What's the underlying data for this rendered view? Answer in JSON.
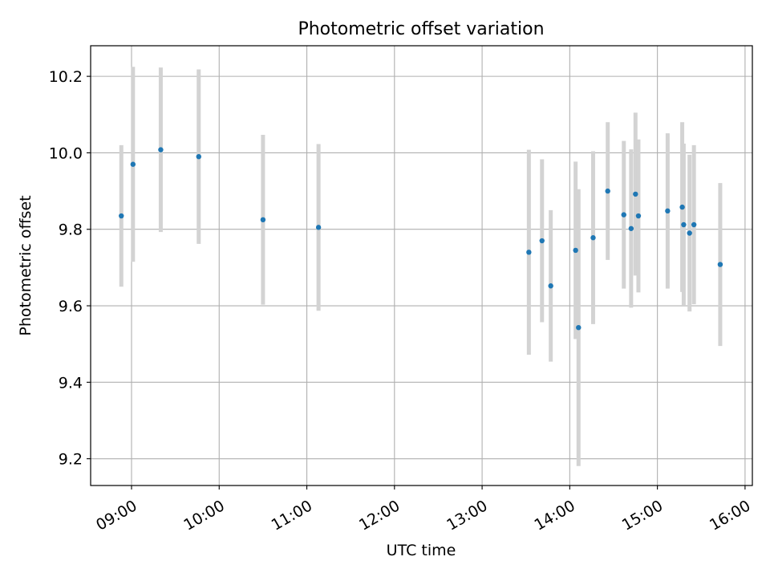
{
  "chart_data": {
    "type": "scatter",
    "title": "Photometric offset variation",
    "xlabel": "UTC time",
    "ylabel": "Photometric offset",
    "x_ticks": [
      "09:00",
      "10:00",
      "11:00",
      "12:00",
      "13:00",
      "14:00",
      "15:00",
      "16:00"
    ],
    "y_ticks": [
      "9.2",
      "9.4",
      "9.6",
      "9.8",
      "10.0",
      "10.2"
    ],
    "xlim": [
      "08:32",
      "16:05"
    ],
    "ylim": [
      9.13,
      10.28
    ],
    "grid": true,
    "marker_color": "#1f77b4",
    "errorbar_color": "#d3d3d3",
    "points": [
      {
        "x": "08:53",
        "y": 9.835,
        "err": 0.185
      },
      {
        "x": "09:01",
        "y": 9.97,
        "err": 0.255
      },
      {
        "x": "09:20",
        "y": 10.008,
        "err": 0.215
      },
      {
        "x": "09:46",
        "y": 9.99,
        "err": 0.228
      },
      {
        "x": "10:30",
        "y": 9.825,
        "err": 0.222
      },
      {
        "x": "11:08",
        "y": 9.805,
        "err": 0.218
      },
      {
        "x": "13:32",
        "y": 9.74,
        "err": 0.268
      },
      {
        "x": "13:41",
        "y": 9.77,
        "err": 0.213
      },
      {
        "x": "13:47",
        "y": 9.652,
        "err": 0.198
      },
      {
        "x": "14:04",
        "y": 9.745,
        "err": 0.232
      },
      {
        "x": "14:06",
        "y": 9.543,
        "err": 0.362
      },
      {
        "x": "14:16",
        "y": 9.778,
        "err": 0.226
      },
      {
        "x": "14:26",
        "y": 9.9,
        "err": 0.18
      },
      {
        "x": "14:37",
        "y": 9.838,
        "err": 0.193
      },
      {
        "x": "14:42",
        "y": 9.802,
        "err": 0.207
      },
      {
        "x": "14:45",
        "y": 9.892,
        "err": 0.213
      },
      {
        "x": "14:47",
        "y": 9.835,
        "err": 0.2
      },
      {
        "x": "15:07",
        "y": 9.848,
        "err": 0.203
      },
      {
        "x": "15:17",
        "y": 9.858,
        "err": 0.222
      },
      {
        "x": "15:18",
        "y": 9.812,
        "err": 0.212
      },
      {
        "x": "15:22",
        "y": 9.79,
        "err": 0.205
      },
      {
        "x": "15:25",
        "y": 9.812,
        "err": 0.208
      },
      {
        "x": "15:43",
        "y": 9.708,
        "err": 0.213
      }
    ]
  }
}
